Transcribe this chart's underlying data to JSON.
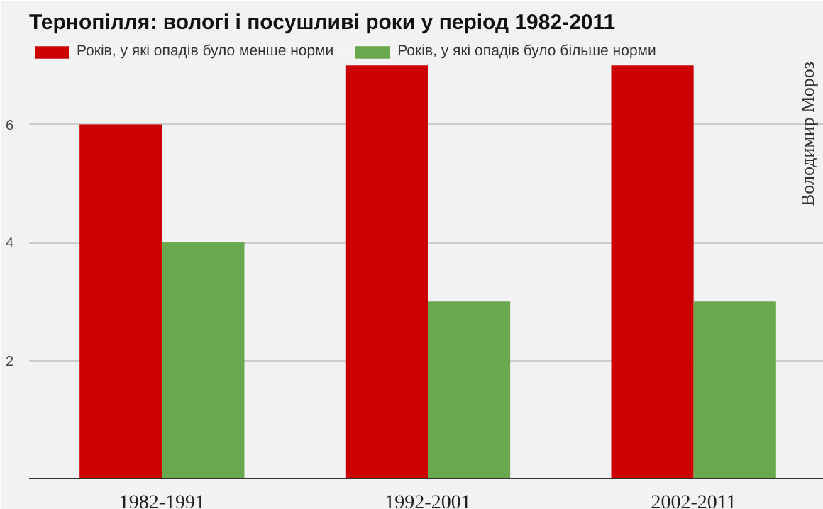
{
  "chart_data": {
    "type": "bar",
    "title": "Тернопілля: вологі і посушливі роки у період 1982-2011",
    "categories": [
      "1982-1991",
      "1992-2001",
      "2002-2011"
    ],
    "series": [
      {
        "name": "Років, у які опадів було менше норми",
        "color": "#cc0000",
        "values": [
          6,
          7,
          7
        ]
      },
      {
        "name": "Років, у які опадів було більше норми",
        "color": "#6aa84f",
        "values": [
          4,
          3,
          3
        ]
      }
    ],
    "ylim": [
      0,
      7.4
    ],
    "yticks": [
      2,
      4,
      6
    ],
    "grid": "y",
    "legend": "top",
    "annotations": [
      "Володимир Мороз"
    ]
  }
}
